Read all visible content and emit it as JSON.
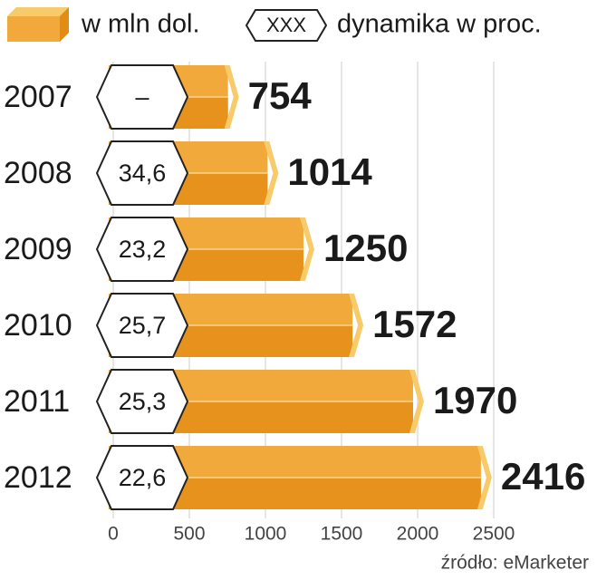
{
  "chart_data": {
    "type": "bar",
    "orientation": "horizontal",
    "categories": [
      "2007",
      "2008",
      "2009",
      "2010",
      "2011",
      "2012"
    ],
    "series": [
      {
        "name": "w mln dol.",
        "color": "#f0a93a",
        "values": [
          754,
          1014,
          1250,
          1572,
          1970,
          2416
        ]
      },
      {
        "name": "dynamika w proc.",
        "values": [
          null,
          34.6,
          23.2,
          25.7,
          25.3,
          22.6
        ],
        "value_labels": [
          "–",
          "34,6",
          "23,2",
          "25,7",
          "25,3",
          "22,6"
        ]
      }
    ],
    "legend_symbol_text": "XXX",
    "xlim": [
      0,
      2500
    ],
    "xticks": [
      0,
      500,
      1000,
      1500,
      2000,
      2500
    ],
    "grid": true,
    "source": "źródło: eMarketer"
  }
}
